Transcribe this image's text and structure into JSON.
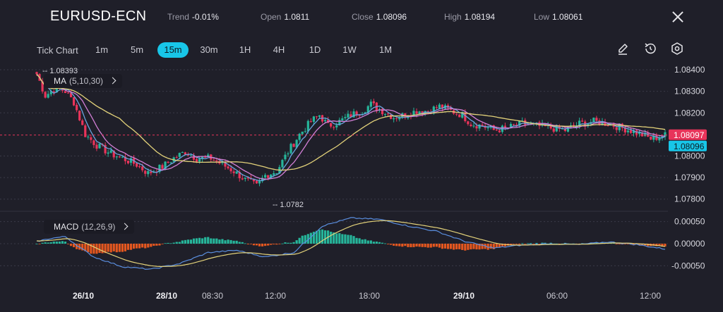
{
  "header": {
    "symbol": "EURUSD-ECN",
    "stats": [
      {
        "label": "Trend",
        "value": "-0.01%"
      },
      {
        "label": "Open",
        "value": "1.0811"
      },
      {
        "label": "Close",
        "value": "1.08096"
      },
      {
        "label": "High",
        "value": "1.08194"
      },
      {
        "label": "Low",
        "value": "1.08061"
      }
    ],
    "close_icon": "close-icon"
  },
  "timeframes": {
    "label": "Tick Chart",
    "items": [
      "1m",
      "5m",
      "15m",
      "30m",
      "1H",
      "4H",
      "1D",
      "1W",
      "1M"
    ],
    "active": "15m"
  },
  "toolbar": {
    "icons": [
      "draw-pencil-icon",
      "reset-clock-icon",
      "settings-hex-icon"
    ]
  },
  "colors": {
    "background": "#1f1f29",
    "up": "#26b59a",
    "down": "#e8345a",
    "ma5": "#6aa5e0",
    "ma10": "#d27fd6",
    "ma30": "#e3d27a",
    "macd_line": "#5b8fe0",
    "signal_line": "#e3d27a",
    "hist_pos": "#26b59a",
    "hist_neg": "#e4571f",
    "accent": "#18c6e8",
    "price_tag_red": "#e8345a",
    "price_tag_cyan": "#18c6e8"
  },
  "indicators": {
    "ma": {
      "name": "MA",
      "params": "(5,10,30)"
    },
    "macd": {
      "name": "MACD",
      "params": "(12,26,9)"
    }
  },
  "chart_data": {
    "type": "candlestick",
    "price_axis": {
      "ticks": [
        "1.08400",
        "1.08300",
        "1.08200",
        "1.08000",
        "1.07900",
        "1.07800"
      ],
      "ylim": [
        1.0775,
        1.0841
      ]
    },
    "macd_axis": {
      "ticks": [
        "0.00050",
        "0.00000",
        "-0.00050"
      ],
      "ylim": [
        -0.0007,
        0.0007
      ]
    },
    "x_ticks": [
      "26/10",
      "28/10",
      "08:30",
      "12:00",
      "18:00",
      "29/10",
      "06:00",
      "12:00"
    ],
    "bold_x_ticks": [
      "26/10",
      "28/10",
      "29/10"
    ],
    "annotations": {
      "high_label": "1.08393",
      "low_label": "1.0782",
      "current_red": "1.08097",
      "current_cyan": "1.08096"
    },
    "price_anchors": [
      [
        0,
        1.0838
      ],
      [
        3,
        1.0828
      ],
      [
        7,
        1.0832
      ],
      [
        10,
        1.083
      ],
      [
        13,
        1.0825
      ],
      [
        17,
        1.081
      ],
      [
        21,
        1.0805
      ],
      [
        26,
        1.0801
      ],
      [
        30,
        1.0799
      ],
      [
        35,
        1.0796
      ],
      [
        39,
        1.0792
      ],
      [
        44,
        1.0795
      ],
      [
        48,
        1.0799
      ],
      [
        52,
        1.0802
      ],
      [
        56,
        1.0799
      ],
      [
        61,
        1.0799
      ],
      [
        65,
        1.0796
      ],
      [
        69,
        1.0793
      ],
      [
        73,
        1.0789
      ],
      [
        77,
        1.0786
      ],
      [
        80,
        1.0791
      ],
      [
        84,
        1.0793
      ],
      [
        88,
        1.0802
      ],
      [
        92,
        1.081
      ],
      [
        96,
        1.0816
      ],
      [
        99,
        1.0819
      ],
      [
        102,
        1.0814
      ],
      [
        106,
        1.0816
      ],
      [
        110,
        1.0819
      ],
      [
        114,
        1.0821
      ],
      [
        117,
        1.0824
      ],
      [
        121,
        1.0821
      ],
      [
        125,
        1.0818
      ],
      [
        129,
        1.0819
      ],
      [
        133,
        1.0821
      ],
      [
        137,
        1.0821
      ],
      [
        141,
        1.0823
      ],
      [
        145,
        1.0821
      ],
      [
        149,
        1.0819
      ],
      [
        152,
        1.0815
      ],
      [
        156,
        1.0814
      ],
      [
        160,
        1.0812
      ],
      [
        165,
        1.0813
      ],
      [
        170,
        1.0815
      ],
      [
        175,
        1.0814
      ],
      [
        180,
        1.0813
      ],
      [
        185,
        1.0812
      ],
      [
        190,
        1.0815
      ],
      [
        195,
        1.0816
      ],
      [
        200,
        1.0815
      ],
      [
        205,
        1.0813
      ],
      [
        210,
        1.0811
      ],
      [
        215,
        1.0808
      ],
      [
        220,
        1.08096
      ]
    ],
    "macd_anchors": [
      [
        0,
        5e-05
      ],
      [
        5,
        0.00012
      ],
      [
        10,
        0.00016
      ],
      [
        15,
        -8e-05
      ],
      [
        20,
        -0.0003
      ],
      [
        30,
        -0.00052
      ],
      [
        40,
        -0.00058
      ],
      [
        50,
        -0.00045
      ],
      [
        60,
        -0.0002
      ],
      [
        70,
        -0.00015
      ],
      [
        80,
        -0.0003
      ],
      [
        90,
        -0.0002
      ],
      [
        100,
        0.0004
      ],
      [
        110,
        0.00058
      ],
      [
        120,
        0.00055
      ],
      [
        130,
        0.0004
      ],
      [
        140,
        0.00028
      ],
      [
        150,
        5e-05
      ],
      [
        160,
        -0.0001
      ],
      [
        170,
        -3e-05
      ],
      [
        180,
        0.0
      ],
      [
        190,
        -2e-05
      ],
      [
        200,
        4e-05
      ],
      [
        210,
        -2e-05
      ],
      [
        220,
        -0.00012
      ]
    ]
  }
}
